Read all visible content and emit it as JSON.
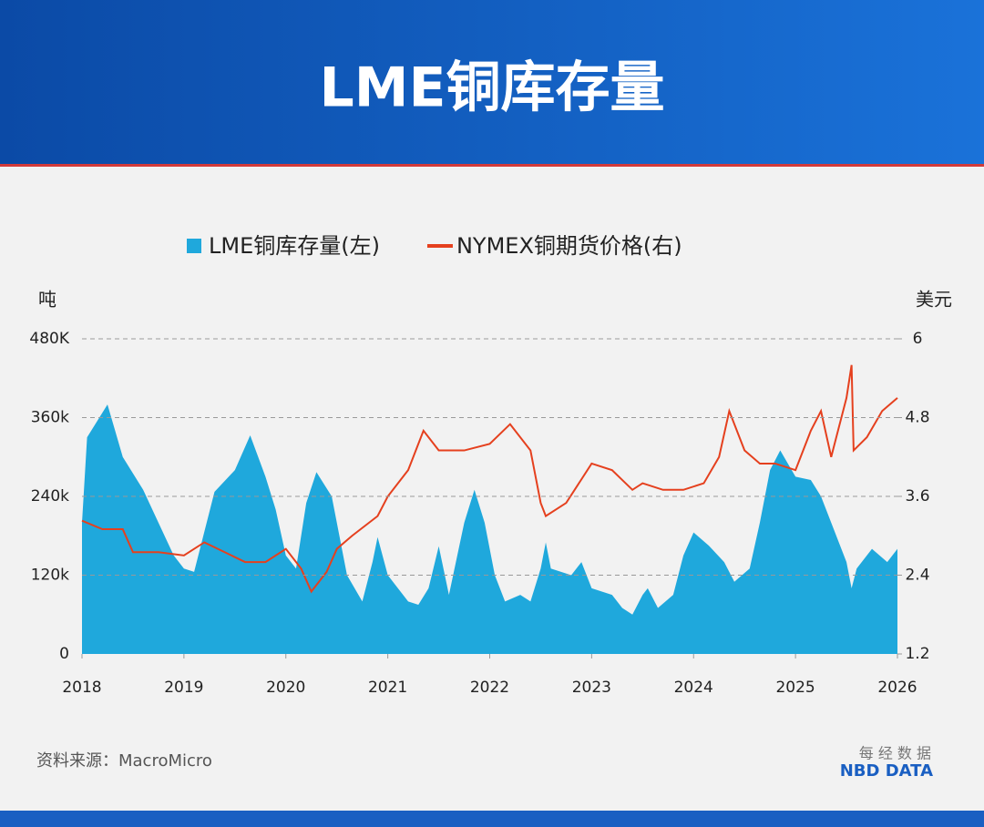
{
  "chart_data": {
    "type": "area-line",
    "title": "LME铜库存量",
    "y_label": "吨",
    "y2_label": "美元",
    "source": "资料来源：MacroMicro",
    "xlim": [
      2018,
      2026
    ],
    "xticks": [
      2018,
      2019,
      2020,
      2021,
      2022,
      2023,
      2024,
      2025,
      2026
    ],
    "ylim": [
      0,
      480000
    ],
    "yticks": [
      0,
      {
        "value": 120000,
        "label": "120k"
      },
      {
        "value": 240000,
        "label": "240k"
      },
      {
        "value": 360000,
        "label": "360k"
      },
      {
        "value": 480000,
        "label": "480K"
      }
    ],
    "y2lim": [
      1.2,
      6
    ],
    "y2ticks": [
      1.2,
      2.4,
      3.6,
      4.8,
      6
    ],
    "grid": true,
    "series": [
      {
        "name": "LME铜库存量(左)",
        "color": "#1fa8dc",
        "kind": "area",
        "x": [
          2018.0,
          2018.05,
          2018.25,
          2018.4,
          2018.6,
          2018.75,
          2018.9,
          2019.0,
          2019.1,
          2019.3,
          2019.5,
          2019.65,
          2019.8,
          2019.9,
          2020.0,
          2020.1,
          2020.2,
          2020.3,
          2020.45,
          2020.6,
          2020.75,
          2020.85,
          2020.9,
          2021.0,
          2021.2,
          2021.3,
          2021.4,
          2021.5,
          2021.6,
          2021.75,
          2021.85,
          2021.95,
          2022.05,
          2022.15,
          2022.3,
          2022.4,
          2022.5,
          2022.55,
          2022.6,
          2022.8,
          2022.9,
          2023.0,
          2023.2,
          2023.3,
          2023.4,
          2023.5,
          2023.55,
          2023.65,
          2023.8,
          2023.9,
          2024.0,
          2024.15,
          2024.3,
          2024.4,
          2024.55,
          2024.65,
          2024.75,
          2024.85,
          2025.0,
          2025.15,
          2025.25,
          2025.4,
          2025.5,
          2025.55,
          2025.6,
          2025.75,
          2025.9,
          2026.0
        ],
        "values": [
          200000,
          330000,
          380000,
          300000,
          250000,
          200000,
          150000,
          130000,
          125000,
          247000,
          280000,
          333000,
          270000,
          220000,
          150000,
          130000,
          230000,
          277000,
          240000,
          120000,
          80000,
          140000,
          178000,
          120000,
          80000,
          75000,
          100000,
          164000,
          90000,
          200000,
          250000,
          200000,
          120000,
          80000,
          90000,
          80000,
          130000,
          170000,
          130000,
          120000,
          140000,
          100000,
          90000,
          70000,
          60000,
          90000,
          100000,
          70000,
          90000,
          150000,
          185000,
          165000,
          140000,
          110000,
          130000,
          200000,
          280000,
          310000,
          270000,
          265000,
          240000,
          180000,
          140000,
          100000,
          130000,
          160000,
          140000,
          160000
        ]
      },
      {
        "name": "NYMEX铜期货价格(右)",
        "color": "#e5401e",
        "kind": "line",
        "axis": "y2",
        "x": [
          2018.0,
          2018.2,
          2018.4,
          2018.5,
          2018.75,
          2019.0,
          2019.2,
          2019.4,
          2019.6,
          2019.8,
          2020.0,
          2020.15,
          2020.25,
          2020.4,
          2020.5,
          2020.65,
          2020.9,
          2021.0,
          2021.2,
          2021.35,
          2021.5,
          2021.75,
          2022.0,
          2022.2,
          2022.4,
          2022.5,
          2022.55,
          2022.75,
          2023.0,
          2023.2,
          2023.4,
          2023.5,
          2023.7,
          2023.9,
          2024.1,
          2024.25,
          2024.35,
          2024.5,
          2024.65,
          2024.8,
          2025.0,
          2025.15,
          2025.25,
          2025.35,
          2025.45,
          2025.5,
          2025.55,
          2025.57,
          2025.7,
          2025.85,
          2026.0
        ],
        "values": [
          3.23,
          3.1,
          3.1,
          2.75,
          2.75,
          2.7,
          2.9,
          2.75,
          2.6,
          2.6,
          2.8,
          2.5,
          2.15,
          2.45,
          2.8,
          3.0,
          3.3,
          3.6,
          4.0,
          4.6,
          4.3,
          4.3,
          4.4,
          4.7,
          4.3,
          3.5,
          3.3,
          3.5,
          4.1,
          4.0,
          3.7,
          3.8,
          3.7,
          3.7,
          3.8,
          4.2,
          4.9,
          4.3,
          4.1,
          4.1,
          4.0,
          4.6,
          4.9,
          4.2,
          4.8,
          5.1,
          5.6,
          4.3,
          4.5,
          4.9,
          5.1
        ]
      }
    ]
  },
  "branding": {
    "cn": "每 经 数 据",
    "en": "NBD DATA"
  }
}
